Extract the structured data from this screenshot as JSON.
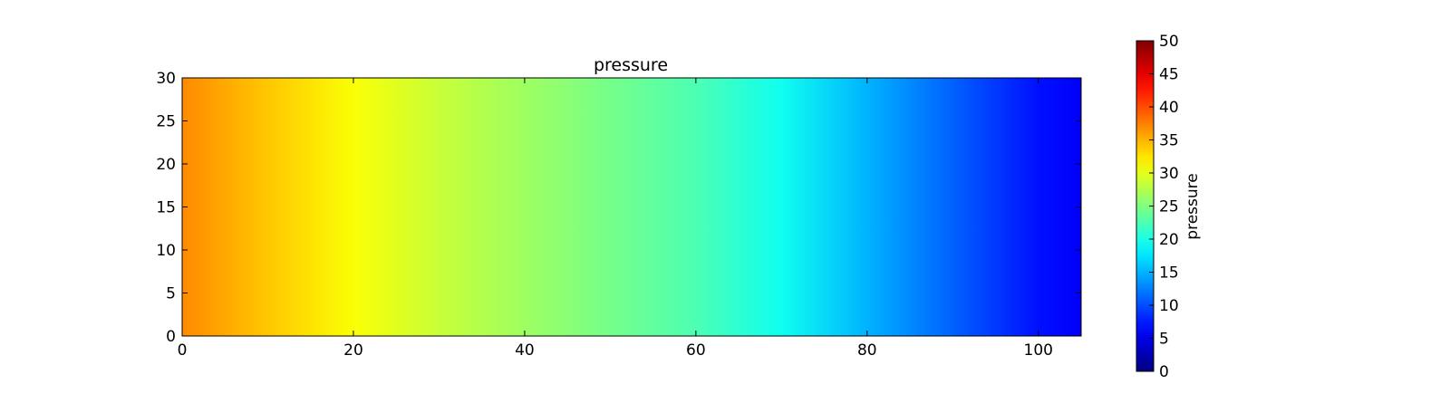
{
  "chart_data": {
    "type": "heatmap",
    "title": "pressure",
    "xlabel": "",
    "ylabel": "",
    "xlim": [
      0,
      105
    ],
    "ylim": [
      0,
      30
    ],
    "x_ticks": [
      0,
      20,
      40,
      60,
      80,
      100
    ],
    "y_ticks": [
      0,
      5,
      10,
      15,
      20,
      25,
      30
    ],
    "x_tick_labels": [
      "0",
      "20",
      "40",
      "60",
      "80",
      "100"
    ],
    "y_tick_labels": [
      "0",
      "5",
      "10",
      "15",
      "20",
      "25",
      "30"
    ],
    "colormap": "jet",
    "colorbar": {
      "label": "pressure",
      "range": [
        0,
        50
      ],
      "ticks": [
        0,
        5,
        10,
        15,
        20,
        25,
        30,
        35,
        40,
        45,
        50
      ],
      "tick_labels": [
        "0",
        "5",
        "10",
        "15",
        "20",
        "25",
        "30",
        "35",
        "40",
        "45",
        "50"
      ],
      "placement": "right"
    },
    "field": {
      "description_axis": "x",
      "x": [
        0,
        10,
        20,
        30,
        40,
        50,
        60,
        70,
        80,
        90,
        100,
        105
      ],
      "values": [
        37,
        34,
        31,
        28.5,
        26.5,
        24.5,
        22.5,
        19.5,
        15,
        11,
        7,
        6
      ]
    },
    "grid": false
  }
}
